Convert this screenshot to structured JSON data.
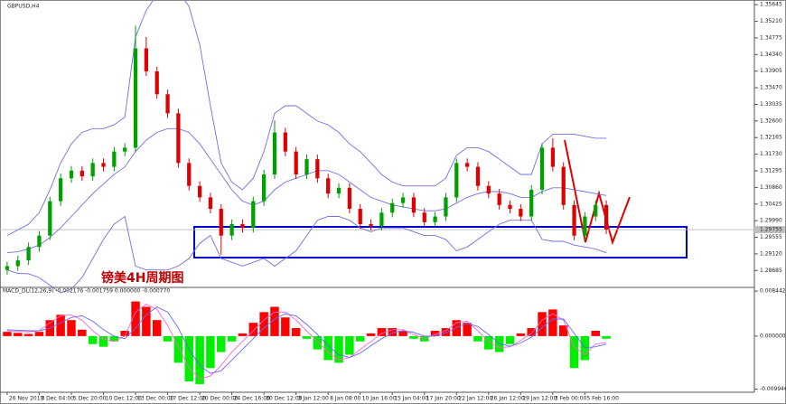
{
  "chart_data": {
    "type": "candlestick",
    "title": "GBPUSD,H4",
    "annotation": "镑美4H周期图",
    "up_color": "#00a000",
    "down_color": "#e00000",
    "categories": [
      "26 Nov 2019",
      null,
      null,
      "3 Dec 04:00",
      null,
      null,
      "5 Dec 20:00",
      null,
      null,
      "10 Dec 12:00",
      null,
      null,
      "13 Dec 00:00",
      null,
      null,
      "17 Dec 12:00",
      null,
      null,
      "20 Dec 00:00",
      null,
      null,
      "24 Dec 16:00",
      null,
      null,
      "30 Dec 12:00",
      null,
      null,
      "3 Jan 12:00",
      null,
      null,
      "8 Jan 08:00",
      null,
      null,
      "10 Jan 16:00",
      null,
      null,
      "15 Jan 04:00",
      null,
      null,
      "17 Jan 20:00",
      null,
      null,
      "22 Jan 12:00",
      null,
      null,
      "26 Jan 12:00",
      null,
      null,
      "29 Jan 12:00",
      null,
      null,
      "3 Feb 00:00",
      null,
      null,
      "5 Feb 16:00",
      null,
      null
    ],
    "open": [
      1.287,
      1.288,
      1.2895,
      1.293,
      1.296,
      1.305,
      1.311,
      1.313,
      1.3115,
      1.315,
      1.314,
      1.318,
      1.319,
      1.345,
      1.339,
      1.333,
      1.328,
      1.315,
      1.309,
      1.306,
      1.303,
      1.296,
      1.299,
      1.298,
      1.305,
      1.312,
      1.323,
      1.318,
      1.312,
      1.316,
      1.311,
      1.307,
      1.3085,
      1.303,
      1.299,
      1.2985,
      1.302,
      1.3045,
      1.306,
      1.302,
      1.2995,
      1.301,
      1.306,
      1.315,
      1.314,
      1.309,
      1.307,
      1.304,
      1.303,
      1.301,
      1.308,
      1.319,
      1.314,
      1.304,
      1.296,
      1.301,
      1.304
    ],
    "high": [
      1.2892,
      1.2907,
      1.2942,
      1.2972,
      1.3062,
      1.3122,
      1.3142,
      1.3142,
      1.3162,
      1.3162,
      1.3192,
      1.3202,
      1.351,
      1.348,
      1.3402,
      1.3342,
      1.3292,
      1.3162,
      1.3102,
      1.3072,
      1.3042,
      1.3002,
      1.3002,
      1.3062,
      1.3132,
      1.3262,
      1.3242,
      1.3192,
      1.3172,
      1.3172,
      1.3122,
      1.3097,
      1.3097,
      1.3042,
      1.3002,
      1.3032,
      1.3057,
      1.3072,
      1.3072,
      1.3032,
      1.3022,
      1.3072,
      1.3162,
      1.3162,
      1.3152,
      1.3102,
      1.3082,
      1.3052,
      1.3042,
      1.3092,
      1.3202,
      1.3215,
      1.3152,
      1.3052,
      1.3022,
      1.3052,
      1.3052
    ],
    "low": [
      1.2858,
      1.2868,
      1.2883,
      1.2918,
      1.2948,
      1.3038,
      1.3098,
      1.3103,
      1.3103,
      1.3128,
      1.3128,
      1.3168,
      1.3178,
      1.3378,
      1.3318,
      1.3268,
      1.3138,
      1.3078,
      1.3048,
      1.3018,
      1.291,
      1.2948,
      1.2968,
      1.2968,
      1.3038,
      1.3108,
      1.3168,
      1.3108,
      1.3108,
      1.3098,
      1.3058,
      1.3058,
      1.3018,
      1.2978,
      1.2973,
      1.2973,
      1.3008,
      1.3033,
      1.3008,
      1.2983,
      1.2983,
      1.2998,
      1.3048,
      1.3128,
      1.3078,
      1.3058,
      1.3028,
      1.3018,
      1.2998,
      1.2998,
      1.3068,
      1.3128,
      1.3028,
      1.2948,
      1.2948,
      1.2998,
      1.2964
    ],
    "close": [
      1.288,
      1.2895,
      1.293,
      1.296,
      1.305,
      1.311,
      1.313,
      1.3115,
      1.315,
      1.314,
      1.318,
      1.319,
      1.345,
      1.339,
      1.333,
      1.328,
      1.315,
      1.309,
      1.306,
      1.303,
      1.296,
      1.299,
      1.298,
      1.305,
      1.312,
      1.323,
      1.318,
      1.312,
      1.316,
      1.311,
      1.307,
      1.3085,
      1.303,
      1.299,
      1.2985,
      1.302,
      1.3045,
      1.306,
      1.302,
      1.2995,
      1.301,
      1.306,
      1.315,
      1.314,
      1.309,
      1.307,
      1.304,
      1.303,
      1.301,
      1.308,
      1.319,
      1.314,
      1.304,
      1.296,
      1.301,
      1.304,
      1.2976
    ],
    "bollinger": {
      "color": "#7070e0",
      "upper": [
        1.296,
        1.2975,
        1.299,
        1.302,
        1.308,
        1.315,
        1.32,
        1.323,
        1.324,
        1.324,
        1.325,
        1.327,
        1.348,
        1.355,
        1.359,
        1.361,
        1.36,
        1.356,
        1.346,
        1.33,
        1.315,
        1.31,
        1.308,
        1.311,
        1.318,
        1.328,
        1.33,
        1.33,
        1.328,
        1.326,
        1.325,
        1.323,
        1.32,
        1.318,
        1.315,
        1.312,
        1.31,
        1.309,
        1.309,
        1.309,
        1.309,
        1.311,
        1.317,
        1.319,
        1.319,
        1.318,
        1.316,
        1.314,
        1.312,
        1.312,
        1.32,
        1.3225,
        1.3225,
        1.3225,
        1.322,
        1.3215,
        1.3215
      ],
      "middle": [
        1.2915,
        1.2918,
        1.2925,
        1.2935,
        1.2955,
        1.298,
        1.301,
        1.304,
        1.307,
        1.3095,
        1.312,
        1.314,
        1.318,
        1.321,
        1.323,
        1.324,
        1.324,
        1.323,
        1.32,
        1.316,
        1.312,
        1.308,
        1.305,
        1.304,
        1.305,
        1.308,
        1.31,
        1.311,
        1.312,
        1.313,
        1.313,
        1.312,
        1.31,
        1.308,
        1.306,
        1.305,
        1.304,
        1.3035,
        1.303,
        1.3025,
        1.3025,
        1.303,
        1.3045,
        1.306,
        1.307,
        1.3075,
        1.3075,
        1.307,
        1.306,
        1.306,
        1.3075,
        1.3085,
        1.3085,
        1.308,
        1.3075,
        1.307,
        1.3065
      ],
      "lower": [
        1.287,
        1.2861,
        1.286,
        1.285,
        1.283,
        1.281,
        1.282,
        1.285,
        1.29,
        1.295,
        1.299,
        1.301,
        1.288,
        1.287,
        1.287,
        1.287,
        1.288,
        1.29,
        1.294,
        1.296,
        1.29,
        1.289,
        1.288,
        1.289,
        1.29,
        1.288,
        1.29,
        1.292,
        1.296,
        1.3,
        1.301,
        1.301,
        1.3,
        1.298,
        1.297,
        1.298,
        1.298,
        1.298,
        1.297,
        1.296,
        1.296,
        1.295,
        1.292,
        1.293,
        1.295,
        1.297,
        1.299,
        1.3,
        1.3,
        1.3,
        1.295,
        1.2945,
        1.2945,
        1.2935,
        1.293,
        1.2925,
        1.2915
      ]
    },
    "current_price": 1.29755,
    "ylim": [
      1.2829,
      1.3572
    ],
    "yticks": [
      1.35645,
      {
        "value": 1.3521,
        "label": "1.35210"
      },
      1.34775,
      {
        "value": 1.3434,
        "label": "1.34340"
      },
      1.33905,
      {
        "value": 1.3347,
        "label": "1.33470"
      },
      1.33035,
      {
        "value": 1.326,
        "label": "1.32600"
      },
      1.32165,
      {
        "value": 1.3173,
        "label": "1.31730"
      },
      1.31295,
      {
        "value": 1.3086,
        "label": "1.30860"
      },
      1.30425,
      {
        "value": 1.2999,
        "label": "1.29990"
      },
      1.29555,
      {
        "value": 1.2912,
        "label": "1.29120"
      },
      1.28685
    ],
    "macd": {
      "label": "MACD_DL(12,26,9) -0.002176 -0.001759 0.000000 -0.000770",
      "up_color": "#ff0000",
      "down_color": "#00ee00",
      "histogram": [
        0.0008,
        0.0006,
        0.0004,
        0.0008,
        0.003,
        0.004,
        0.003,
        0.0012,
        -0.0015,
        -0.002,
        -0.001,
        0.001,
        0.0065,
        0.0055,
        0.003,
        -0.001,
        -0.005,
        -0.0085,
        -0.009,
        -0.006,
        -0.003,
        -0.001,
        0.0005,
        0.0025,
        0.0045,
        0.0055,
        0.0035,
        0.0015,
        -0.0005,
        -0.0025,
        -0.0045,
        -0.005,
        -0.0035,
        -0.001,
        0.0005,
        0.0015,
        0.0015,
        0.001,
        -0.0005,
        -0.001,
        0.001,
        0.0015,
        0.003,
        0.0025,
        -0.001,
        -0.0025,
        -0.003,
        -0.0015,
        0.0005,
        0.0015,
        0.0045,
        0.005,
        0.002,
        -0.006,
        -0.0045,
        0.001,
        -0.0005
      ],
      "lines": [
        {
          "color": "#ff66cc",
          "values": [
            0.001,
            0.0009,
            0.0008,
            0.001,
            0.0025,
            0.0038,
            0.004,
            0.003,
            0.001,
            -0.0005,
            -0.001,
            0.0,
            0.0045,
            0.006,
            0.005,
            0.002,
            -0.002,
            -0.006,
            -0.008,
            -0.0075,
            -0.0055,
            -0.003,
            -0.001,
            0.001,
            0.003,
            0.0045,
            0.0045,
            0.003,
            0.001,
            -0.001,
            -0.003,
            -0.0045,
            -0.004,
            -0.0025,
            -0.001,
            0.0005,
            0.0012,
            0.0012,
            0.0003,
            -0.0005,
            0.0003,
            0.001,
            0.0025,
            0.0028,
            0.001,
            -0.001,
            -0.0022,
            -0.002,
            -0.0008,
            0.0005,
            0.003,
            0.0042,
            0.003,
            -0.002,
            -0.0035,
            -0.0015,
            -0.0012
          ]
        },
        {
          "color": "#6666ff",
          "values": [
            0.0012,
            0.0011,
            0.001,
            0.001,
            0.0015,
            0.0025,
            0.0035,
            0.0038,
            0.0028,
            0.0012,
            0.0,
            -0.0005,
            0.0015,
            0.004,
            0.0055,
            0.0045,
            0.0015,
            -0.0025,
            -0.0055,
            -0.007,
            -0.0065,
            -0.0045,
            -0.0025,
            -0.0005,
            0.0015,
            0.0032,
            0.0042,
            0.0038,
            0.0022,
            0.0003,
            -0.0018,
            -0.0035,
            -0.004,
            -0.0032,
            -0.0018,
            -0.0005,
            0.0006,
            0.001,
            0.0007,
            0.0,
            0.0,
            0.0006,
            0.0016,
            0.0024,
            0.0018,
            0.0003,
            -0.0014,
            -0.0019,
            -0.0013,
            -0.0002,
            0.0016,
            0.0032,
            0.0032,
            0.0005,
            -0.0022,
            -0.002,
            -0.0015
          ]
        }
      ],
      "ylim": [
        -0.0102,
        0.0088
      ],
      "yticks": [
        0.008442,
        {
          "value": 0,
          "label": "0.000000"
        },
        -0.009946
      ]
    }
  }
}
